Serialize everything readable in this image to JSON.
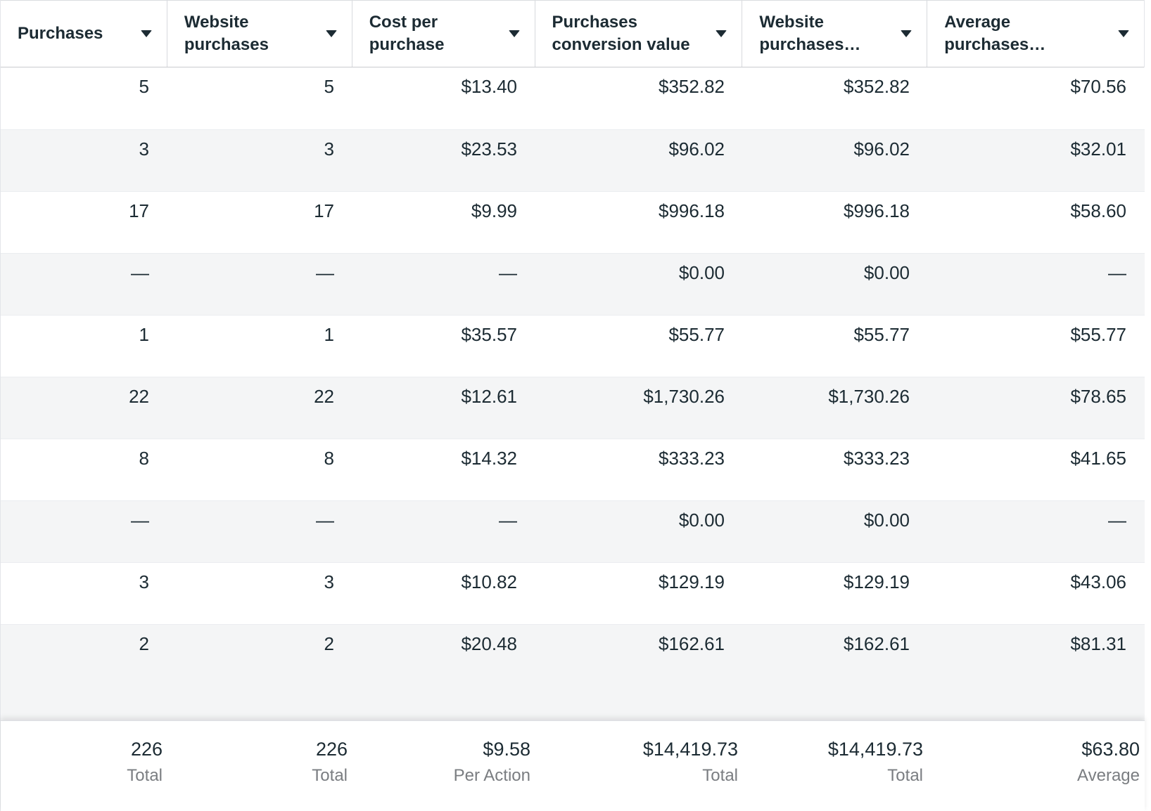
{
  "table": {
    "columns": [
      {
        "label": "Purchases"
      },
      {
        "label": "Website purchases"
      },
      {
        "label": "Cost per purchase"
      },
      {
        "label": "Purchases conversion value"
      },
      {
        "label": "Website purchases…"
      },
      {
        "label": "Average purchases…"
      }
    ],
    "rows": [
      [
        "5",
        "5",
        "$13.40",
        "$352.82",
        "$352.82",
        "$70.56"
      ],
      [
        "3",
        "3",
        "$23.53",
        "$96.02",
        "$96.02",
        "$32.01"
      ],
      [
        "17",
        "17",
        "$9.99",
        "$996.18",
        "$996.18",
        "$58.60"
      ],
      [
        "—",
        "—",
        "—",
        "$0.00",
        "$0.00",
        "—"
      ],
      [
        "1",
        "1",
        "$35.57",
        "$55.77",
        "$55.77",
        "$55.77"
      ],
      [
        "22",
        "22",
        "$12.61",
        "$1,730.26",
        "$1,730.26",
        "$78.65"
      ],
      [
        "8",
        "8",
        "$14.32",
        "$333.23",
        "$333.23",
        "$41.65"
      ],
      [
        "—",
        "—",
        "—",
        "$0.00",
        "$0.00",
        "—"
      ],
      [
        "3",
        "3",
        "$10.82",
        "$129.19",
        "$129.19",
        "$43.06"
      ],
      [
        "2",
        "2",
        "$20.48",
        "$162.61",
        "$162.61",
        "$81.31"
      ]
    ],
    "totals": [
      {
        "value": "226",
        "label": "Total"
      },
      {
        "value": "226",
        "label": "Total"
      },
      {
        "value": "$9.58",
        "label": "Per Action"
      },
      {
        "value": "$14,419.73",
        "label": "Total"
      },
      {
        "value": "$14,419.73",
        "label": "Total"
      },
      {
        "value": "$63.80",
        "label": "Average"
      }
    ]
  },
  "colors": {
    "text": "#1c2b33",
    "muted_label": "#7a7d81",
    "row_stripe": "#f4f5f6",
    "header_border": "#d7d9dd"
  }
}
